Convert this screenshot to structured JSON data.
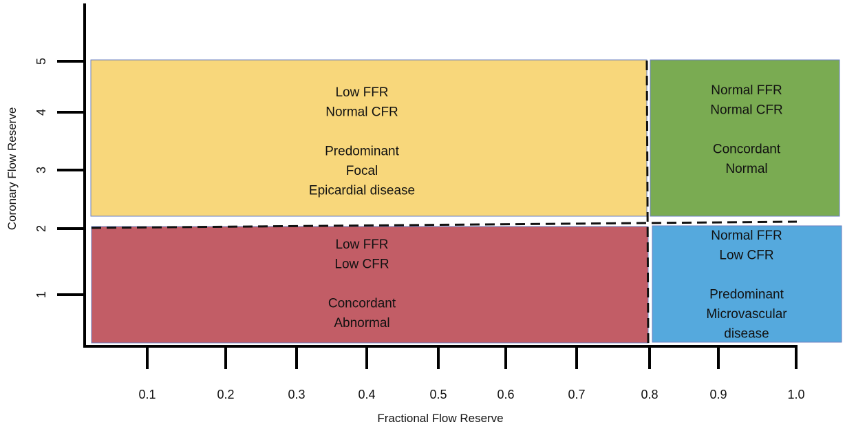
{
  "axes": {
    "xlabel": "Fractional Flow Reserve",
    "ylabel": "Coronary Flow Reserve",
    "xticks": [
      "0.1",
      "0.2",
      "0.3",
      "0.4",
      "0.5",
      "0.6",
      "0.7",
      "0.8",
      "0.9",
      "1.0"
    ],
    "yticks": [
      "1",
      "2",
      "3",
      "4",
      "5"
    ],
    "ffr_cutoff": 0.8,
    "cfr_cutoff": 2
  },
  "quadrants": [
    {
      "id": "low-ffr-normal-cfr",
      "color": "#f8d77b",
      "lines": [
        "Low FFR",
        "Normal CFR",
        "",
        "Predominant",
        "Focal",
        "Epicardial disease"
      ]
    },
    {
      "id": "normal-ffr-normal-cfr",
      "color": "#7aab52",
      "lines": [
        "Normal FFR",
        "Normal CFR",
        "",
        "Concordant",
        "Normal"
      ]
    },
    {
      "id": "low-ffr-low-cfr",
      "color": "#c25d66",
      "lines": [
        "Low FFR",
        "Low CFR",
        "",
        "Concordant",
        "Abnormal"
      ]
    },
    {
      "id": "normal-ffr-low-cfr",
      "color": "#55a9dd",
      "lines": [
        "Normal FFR",
        "Low CFR",
        "",
        "Predominant",
        "Microvascular",
        "disease"
      ]
    }
  ]
}
